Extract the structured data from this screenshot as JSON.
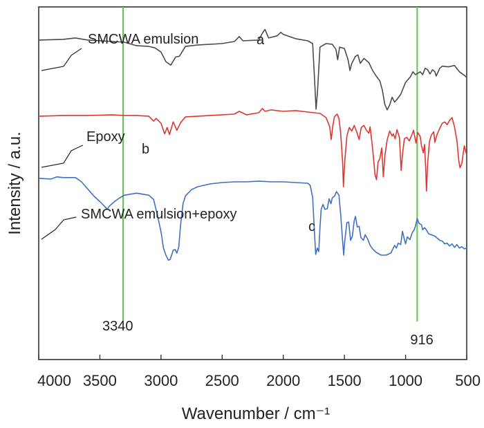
{
  "chart_data": {
    "type": "line",
    "title": "",
    "xlabel": "Wavenumber / cm⁻¹",
    "ylabel": "Intensity / a.u.",
    "xlim": [
      4000,
      500
    ],
    "x_reversed": true,
    "x_ticks": [
      4000,
      3500,
      3000,
      2500,
      2000,
      1500,
      1000,
      500
    ],
    "x_tick_labels": [
      "4000",
      "3500",
      "3000",
      "2500",
      "2000",
      "1500",
      "1000",
      "500"
    ],
    "y_ticks_shown": false,
    "ylim": [
      0,
      100
    ],
    "grid": false,
    "reference_lines": [
      {
        "x": 3310,
        "label": "3340",
        "color": "#5cc84a"
      },
      {
        "x": 905,
        "label": "916",
        "color": "#5cc84a"
      }
    ],
    "series": [
      {
        "name": "SMCWA emulsion",
        "letter": "a",
        "color": "#4a4a4a",
        "points": [
          [
            4000,
            90.6
          ],
          [
            3800,
            90.8
          ],
          [
            3700,
            91.2
          ],
          [
            3600,
            90.6
          ],
          [
            3400,
            90.2
          ],
          [
            3300,
            90.0
          ],
          [
            3200,
            89.0
          ],
          [
            3100,
            88.8
          ],
          [
            3050,
            88.4
          ],
          [
            3000,
            87.2
          ],
          [
            2960,
            84.5
          ],
          [
            2920,
            83.5
          ],
          [
            2880,
            85.8
          ],
          [
            2850,
            86.0
          ],
          [
            2800,
            88.8
          ],
          [
            2700,
            89.2
          ],
          [
            2500,
            89.6
          ],
          [
            2400,
            90.2
          ],
          [
            2360,
            91.6
          ],
          [
            2330,
            90.4
          ],
          [
            2200,
            90.6
          ],
          [
            2170,
            92.6
          ],
          [
            2150,
            93.6
          ],
          [
            2120,
            91.2
          ],
          [
            2050,
            91.8
          ],
          [
            2020,
            92.8
          ],
          [
            2000,
            92.2
          ],
          [
            1900,
            91.0
          ],
          [
            1800,
            90.4
          ],
          [
            1760,
            89.6
          ],
          [
            1745,
            80.0
          ],
          [
            1732,
            71.0
          ],
          [
            1720,
            76.0
          ],
          [
            1700,
            88.6
          ],
          [
            1650,
            89.6
          ],
          [
            1600,
            89.4
          ],
          [
            1570,
            88.0
          ],
          [
            1555,
            85.0
          ],
          [
            1540,
            88.6
          ],
          [
            1500,
            88.2
          ],
          [
            1470,
            85.0
          ],
          [
            1455,
            82.0
          ],
          [
            1440,
            84.0
          ],
          [
            1410,
            86.0
          ],
          [
            1390,
            86.4
          ],
          [
            1370,
            84.0
          ],
          [
            1340,
            85.4
          ],
          [
            1300,
            84.2
          ],
          [
            1270,
            82.0
          ],
          [
            1240,
            80.4
          ],
          [
            1210,
            79.0
          ],
          [
            1190,
            76.4
          ],
          [
            1170,
            72.4
          ],
          [
            1150,
            70.8
          ],
          [
            1130,
            72.2
          ],
          [
            1110,
            74.4
          ],
          [
            1090,
            73.0
          ],
          [
            1070,
            73.8
          ],
          [
            1040,
            75.2
          ],
          [
            1000,
            78.6
          ],
          [
            960,
            80.2
          ],
          [
            940,
            81.6
          ],
          [
            920,
            80.8
          ],
          [
            900,
            81.2
          ],
          [
            880,
            81.6
          ],
          [
            860,
            80.8
          ],
          [
            840,
            82.6
          ],
          [
            820,
            82.2
          ],
          [
            800,
            81.0
          ],
          [
            780,
            82.2
          ],
          [
            760,
            81.6
          ],
          [
            750,
            80.4
          ],
          [
            720,
            82.6
          ],
          [
            700,
            83.2
          ],
          [
            650,
            83.0
          ],
          [
            600,
            83.4
          ],
          [
            560,
            81.6
          ],
          [
            520,
            80.6
          ],
          [
            500,
            80.0
          ]
        ]
      },
      {
        "name": "Epoxy",
        "letter": "b",
        "color": "#e0342e",
        "points": [
          [
            4000,
            69.0
          ],
          [
            3800,
            69.2
          ],
          [
            3600,
            69.2
          ],
          [
            3400,
            69.4
          ],
          [
            3300,
            69.2
          ],
          [
            3200,
            69.2
          ],
          [
            3100,
            69.0
          ],
          [
            3060,
            67.6
          ],
          [
            3040,
            68.4
          ],
          [
            3000,
            67.0
          ],
          [
            2970,
            64.0
          ],
          [
            2950,
            65.8
          ],
          [
            2930,
            63.8
          ],
          [
            2900,
            67.4
          ],
          [
            2870,
            65.0
          ],
          [
            2840,
            67.2
          ],
          [
            2800,
            68.8
          ],
          [
            2600,
            69.2
          ],
          [
            2400,
            69.6
          ],
          [
            2360,
            70.4
          ],
          [
            2300,
            69.4
          ],
          [
            2200,
            70.0
          ],
          [
            2170,
            71.2
          ],
          [
            2150,
            70.4
          ],
          [
            2100,
            70.8
          ],
          [
            2000,
            70.4
          ],
          [
            1900,
            70.6
          ],
          [
            1800,
            70.2
          ],
          [
            1700,
            69.8
          ],
          [
            1650,
            68.6
          ],
          [
            1620,
            66.0
          ],
          [
            1608,
            62.4
          ],
          [
            1595,
            66.2
          ],
          [
            1582,
            68.8
          ],
          [
            1560,
            69.6
          ],
          [
            1545,
            68.4
          ],
          [
            1530,
            64.0
          ],
          [
            1515,
            56.0
          ],
          [
            1508,
            49.0
          ],
          [
            1498,
            56.0
          ],
          [
            1480,
            63.4
          ],
          [
            1460,
            65.8
          ],
          [
            1440,
            64.8
          ],
          [
            1420,
            66.4
          ],
          [
            1400,
            64.6
          ],
          [
            1380,
            62.4
          ],
          [
            1362,
            65.8
          ],
          [
            1340,
            66.4
          ],
          [
            1320,
            65.0
          ],
          [
            1300,
            64.2
          ],
          [
            1290,
            66.0
          ],
          [
            1270,
            60.0
          ],
          [
            1250,
            52.4
          ],
          [
            1238,
            51.0
          ],
          [
            1225,
            56.0
          ],
          [
            1210,
            57.0
          ],
          [
            1195,
            60.0
          ],
          [
            1182,
            51.8
          ],
          [
            1170,
            57.6
          ],
          [
            1150,
            62.4
          ],
          [
            1130,
            64.8
          ],
          [
            1110,
            63.4
          ],
          [
            1100,
            64.0
          ],
          [
            1085,
            62.6
          ],
          [
            1070,
            65.2
          ],
          [
            1050,
            63.0
          ],
          [
            1036,
            53.6
          ],
          [
            1025,
            58.2
          ],
          [
            1010,
            62.6
          ],
          [
            990,
            63.0
          ],
          [
            970,
            62.0
          ],
          [
            950,
            63.6
          ],
          [
            935,
            65.0
          ],
          [
            915,
            61.4
          ],
          [
            900,
            64.4
          ],
          [
            880,
            63.2
          ],
          [
            870,
            60.6
          ],
          [
            855,
            58.6
          ],
          [
            845,
            61.0
          ],
          [
            835,
            53.6
          ],
          [
            829,
            47.8
          ],
          [
            820,
            55.4
          ],
          [
            805,
            61.8
          ],
          [
            790,
            63.6
          ],
          [
            770,
            64.6
          ],
          [
            760,
            61.6
          ],
          [
            745,
            63.6
          ],
          [
            720,
            65.6
          ],
          [
            700,
            67.0
          ],
          [
            680,
            67.4
          ],
          [
            660,
            66.6
          ],
          [
            640,
            67.8
          ],
          [
            620,
            68.6
          ],
          [
            600,
            66.0
          ],
          [
            580,
            62.0
          ],
          [
            565,
            56.4
          ],
          [
            555,
            54.4
          ],
          [
            540,
            55.6
          ],
          [
            520,
            60.6
          ],
          [
            500,
            58.0
          ]
        ]
      },
      {
        "name": "SMCWA emulsion+epoxy",
        "letter": "c",
        "color": "#3f6fc0",
        "points": [
          [
            4000,
            51.4
          ],
          [
            3900,
            51.2
          ],
          [
            3850,
            51.8
          ],
          [
            3800,
            51.6
          ],
          [
            3700,
            51.6
          ],
          [
            3650,
            50.4
          ],
          [
            3600,
            48.4
          ],
          [
            3550,
            46.4
          ],
          [
            3500,
            44.8
          ],
          [
            3460,
            43.4
          ],
          [
            3440,
            42.6
          ],
          [
            3420,
            43.6
          ],
          [
            3380,
            44.8
          ],
          [
            3340,
            45.8
          ],
          [
            3300,
            46.6
          ],
          [
            3200,
            47.2
          ],
          [
            3100,
            46.6
          ],
          [
            3060,
            45.4
          ],
          [
            3030,
            41.0
          ],
          [
            3000,
            36.2
          ],
          [
            2980,
            31.6
          ],
          [
            2960,
            29.6
          ],
          [
            2940,
            28.2
          ],
          [
            2925,
            28.4
          ],
          [
            2900,
            31.0
          ],
          [
            2885,
            31.2
          ],
          [
            2870,
            30.2
          ],
          [
            2855,
            31.8
          ],
          [
            2840,
            38.2
          ],
          [
            2820,
            44.2
          ],
          [
            2800,
            46.4
          ],
          [
            2750,
            48.2
          ],
          [
            2700,
            49.0
          ],
          [
            2600,
            49.8
          ],
          [
            2500,
            50.2
          ],
          [
            2400,
            50.4
          ],
          [
            2300,
            50.4
          ],
          [
            2200,
            50.6
          ],
          [
            2100,
            50.4
          ],
          [
            2000,
            50.4
          ],
          [
            1900,
            50.2
          ],
          [
            1800,
            50.0
          ],
          [
            1780,
            49.4
          ],
          [
            1760,
            46.0
          ],
          [
            1745,
            36.0
          ],
          [
            1735,
            29.8
          ],
          [
            1722,
            31.6
          ],
          [
            1710,
            30.6
          ],
          [
            1700,
            37.6
          ],
          [
            1690,
            42.6
          ],
          [
            1675,
            44.0
          ],
          [
            1660,
            42.6
          ],
          [
            1640,
            42.8
          ],
          [
            1625,
            45.6
          ],
          [
            1610,
            44.2
          ],
          [
            1600,
            45.8
          ],
          [
            1580,
            46.4
          ],
          [
            1565,
            47.6
          ],
          [
            1545,
            46.6
          ],
          [
            1530,
            41.0
          ],
          [
            1515,
            33.6
          ],
          [
            1506,
            29.6
          ],
          [
            1498,
            33.4
          ],
          [
            1480,
            38.8
          ],
          [
            1465,
            39.0
          ],
          [
            1450,
            33.8
          ],
          [
            1435,
            35.0
          ],
          [
            1420,
            39.4
          ],
          [
            1410,
            40.6
          ],
          [
            1395,
            37.6
          ],
          [
            1380,
            37.8
          ],
          [
            1365,
            34.6
          ],
          [
            1345,
            33.8
          ],
          [
            1330,
            35.4
          ],
          [
            1310,
            34.2
          ],
          [
            1290,
            32.4
          ],
          [
            1270,
            31.4
          ],
          [
            1240,
            30.4
          ],
          [
            1200,
            29.6
          ],
          [
            1160,
            29.6
          ],
          [
            1120,
            30.2
          ],
          [
            1090,
            32.4
          ],
          [
            1075,
            31.6
          ],
          [
            1060,
            33.0
          ],
          [
            1040,
            32.6
          ],
          [
            1025,
            36.4
          ],
          [
            1012,
            34.4
          ],
          [
            1000,
            32.8
          ],
          [
            985,
            34.8
          ],
          [
            965,
            34.0
          ],
          [
            945,
            36.0
          ],
          [
            930,
            36.8
          ],
          [
            918,
            38.0
          ],
          [
            905,
            40.0
          ],
          [
            890,
            38.6
          ],
          [
            870,
            38.2
          ],
          [
            860,
            36.8
          ],
          [
            845,
            37.4
          ],
          [
            830,
            36.8
          ],
          [
            810,
            35.6
          ],
          [
            790,
            35.4
          ],
          [
            760,
            35.0
          ],
          [
            740,
            34.4
          ],
          [
            720,
            33.8
          ],
          [
            700,
            33.6
          ],
          [
            680,
            32.8
          ],
          [
            660,
            33.0
          ],
          [
            640,
            32.2
          ],
          [
            620,
            32.8
          ],
          [
            600,
            31.8
          ],
          [
            580,
            32.6
          ],
          [
            560,
            31.6
          ],
          [
            540,
            32.0
          ],
          [
            520,
            31.4
          ],
          [
            500,
            31.6
          ]
        ]
      }
    ]
  }
}
